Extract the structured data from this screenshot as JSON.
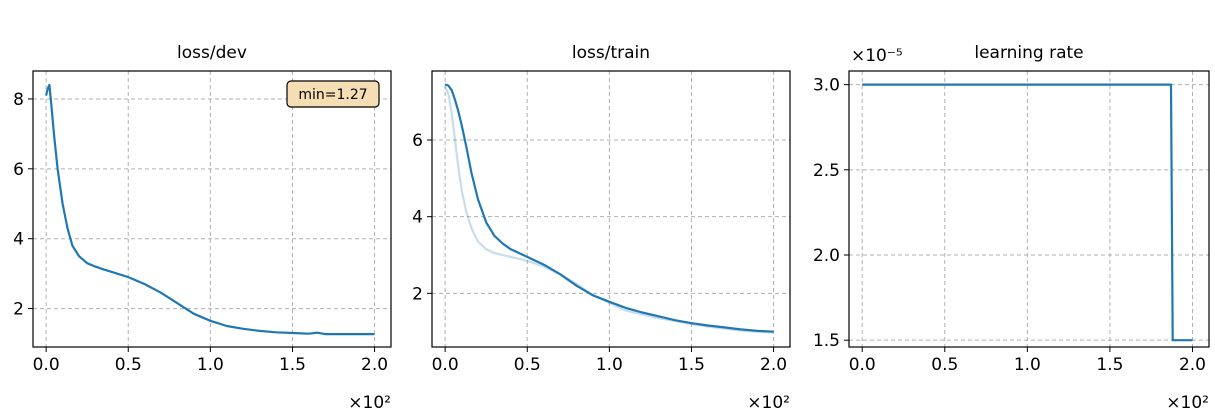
{
  "chart_data": [
    {
      "type": "line",
      "title": "loss/dev",
      "xlim": [
        -0.08,
        2.1
      ],
      "ylim": [
        0.9,
        8.8
      ],
      "xticks": [
        0.0,
        0.5,
        1.0,
        1.5,
        2.0
      ],
      "xtick_labels": [
        "0.0",
        "0.5",
        "1.0",
        "1.5",
        "2.0"
      ],
      "yticks": [
        2,
        4,
        6,
        8
      ],
      "ytick_labels": [
        "2",
        "4",
        "6",
        "8"
      ],
      "x_multiplier": "×10²",
      "grid": true,
      "annotation": "min=1.27",
      "series": [
        {
          "color": "#1f77b4",
          "opacity": 1,
          "x": [
            0.0,
            0.01,
            0.02,
            0.03,
            0.05,
            0.07,
            0.1,
            0.13,
            0.16,
            0.2,
            0.25,
            0.3,
            0.35,
            0.4,
            0.5,
            0.6,
            0.7,
            0.8,
            0.9,
            1.0,
            1.1,
            1.2,
            1.3,
            1.4,
            1.5,
            1.6,
            1.65,
            1.7,
            1.8,
            1.9,
            2.0
          ],
          "y": [
            8.1,
            8.3,
            8.4,
            7.9,
            6.9,
            6.0,
            5.0,
            4.3,
            3.8,
            3.5,
            3.3,
            3.2,
            3.12,
            3.05,
            2.9,
            2.7,
            2.45,
            2.15,
            1.85,
            1.65,
            1.5,
            1.42,
            1.36,
            1.32,
            1.3,
            1.28,
            1.31,
            1.27,
            1.27,
            1.27,
            1.27
          ]
        }
      ]
    },
    {
      "type": "line",
      "title": "loss/train",
      "xlim": [
        -0.08,
        2.1
      ],
      "ylim": [
        0.6,
        7.8
      ],
      "xticks": [
        0.0,
        0.5,
        1.0,
        1.5,
        2.0
      ],
      "xtick_labels": [
        "0.0",
        "0.5",
        "1.0",
        "1.5",
        "2.0"
      ],
      "yticks": [
        2,
        4,
        6
      ],
      "ytick_labels": [
        "2",
        "4",
        "6"
      ],
      "x_multiplier": "×10²",
      "grid": true,
      "series": [
        {
          "color": "#1f77b4",
          "opacity": 0.25,
          "x": [
            0.0,
            0.02,
            0.04,
            0.06,
            0.08,
            0.1,
            0.13,
            0.16,
            0.2,
            0.25,
            0.3,
            0.4,
            0.5,
            0.6,
            0.7,
            0.8,
            0.9,
            1.0,
            1.1,
            1.2,
            1.3,
            1.4,
            1.5,
            1.6,
            1.7,
            1.8,
            1.9,
            2.0
          ],
          "y": [
            7.4,
            7.2,
            6.7,
            6.0,
            5.3,
            4.7,
            4.1,
            3.7,
            3.35,
            3.15,
            3.05,
            2.95,
            2.85,
            2.7,
            2.5,
            2.25,
            1.95,
            1.75,
            1.55,
            1.45,
            1.35,
            1.28,
            1.2,
            1.13,
            1.08,
            1.03,
            1.0,
            0.98
          ]
        },
        {
          "color": "#1f77b4",
          "opacity": 1,
          "x": [
            0.0,
            0.02,
            0.04,
            0.06,
            0.08,
            0.1,
            0.13,
            0.16,
            0.2,
            0.25,
            0.3,
            0.35,
            0.4,
            0.5,
            0.6,
            0.7,
            0.8,
            0.9,
            1.0,
            1.1,
            1.2,
            1.3,
            1.4,
            1.5,
            1.6,
            1.7,
            1.8,
            1.9,
            2.0
          ],
          "y": [
            7.45,
            7.42,
            7.3,
            7.05,
            6.75,
            6.4,
            5.8,
            5.15,
            4.45,
            3.85,
            3.5,
            3.3,
            3.15,
            2.95,
            2.75,
            2.5,
            2.2,
            1.95,
            1.78,
            1.62,
            1.5,
            1.4,
            1.3,
            1.22,
            1.16,
            1.11,
            1.06,
            1.02,
            1.0
          ]
        }
      ]
    },
    {
      "type": "line",
      "title": "learning rate",
      "xlim": [
        -0.08,
        2.1
      ],
      "ylim": [
        1.46,
        3.08
      ],
      "xticks": [
        0.0,
        0.5,
        1.0,
        1.5,
        2.0
      ],
      "xtick_labels": [
        "0.0",
        "0.5",
        "1.0",
        "1.5",
        "2.0"
      ],
      "yticks": [
        1.5,
        2.0,
        2.5,
        3.0
      ],
      "ytick_labels": [
        "1.5",
        "2.0",
        "2.5",
        "3.0"
      ],
      "x_multiplier": "×10²",
      "y_multiplier": "×10⁻⁵",
      "grid": true,
      "series": [
        {
          "color": "#1f77b4",
          "opacity": 1,
          "x": [
            0.0,
            1.87,
            1.88,
            2.0
          ],
          "y": [
            3.0,
            3.0,
            1.5,
            1.5
          ]
        }
      ]
    }
  ]
}
